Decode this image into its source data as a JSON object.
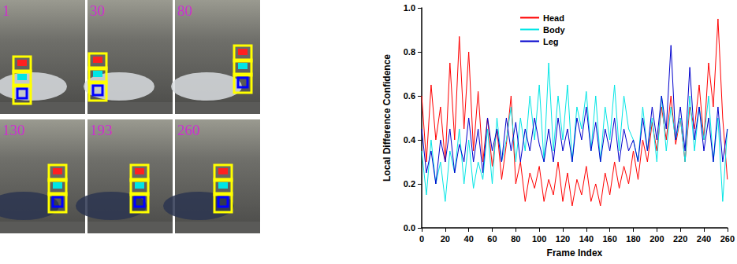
{
  "frames": {
    "labels": [
      "1",
      "30",
      "80",
      "130",
      "193",
      "260"
    ]
  },
  "chart_data": {
    "type": "line",
    "x_label": "Frame Index",
    "y_label": "Local Difference Confidence",
    "x": [
      0,
      4,
      8,
      12,
      16,
      20,
      24,
      28,
      32,
      36,
      40,
      44,
      48,
      52,
      56,
      60,
      64,
      68,
      72,
      76,
      80,
      84,
      88,
      92,
      96,
      100,
      104,
      108,
      112,
      116,
      120,
      124,
      128,
      132,
      136,
      140,
      144,
      148,
      152,
      156,
      160,
      164,
      168,
      172,
      176,
      180,
      184,
      188,
      192,
      196,
      200,
      204,
      208,
      212,
      216,
      220,
      224,
      228,
      232,
      236,
      240,
      244,
      248,
      252,
      256,
      260
    ],
    "series": [
      {
        "name": "Head",
        "color": "#ff0000",
        "values": [
          0.6,
          0.3,
          0.65,
          0.4,
          0.55,
          0.3,
          0.75,
          0.4,
          0.87,
          0.45,
          0.8,
          0.35,
          0.62,
          0.3,
          0.5,
          0.28,
          0.45,
          0.22,
          0.38,
          0.6,
          0.2,
          0.3,
          0.12,
          0.25,
          0.18,
          0.28,
          0.12,
          0.22,
          0.15,
          0.3,
          0.12,
          0.25,
          0.1,
          0.22,
          0.15,
          0.28,
          0.12,
          0.2,
          0.1,
          0.25,
          0.15,
          0.3,
          0.18,
          0.28,
          0.2,
          0.35,
          0.22,
          0.4,
          0.3,
          0.48,
          0.35,
          0.55,
          0.4,
          0.6,
          0.38,
          0.5,
          0.3,
          0.55,
          0.45,
          0.65,
          0.4,
          0.75,
          0.55,
          0.95,
          0.5,
          0.22
        ]
      },
      {
        "name": "Body",
        "color": "#00e5e5",
        "values": [
          0.35,
          0.15,
          0.4,
          0.2,
          0.3,
          0.12,
          0.35,
          0.25,
          0.45,
          0.2,
          0.4,
          0.18,
          0.3,
          0.22,
          0.45,
          0.2,
          0.5,
          0.3,
          0.4,
          0.55,
          0.3,
          0.5,
          0.35,
          0.6,
          0.4,
          0.65,
          0.3,
          0.75,
          0.35,
          0.6,
          0.4,
          0.65,
          0.3,
          0.55,
          0.45,
          0.62,
          0.35,
          0.6,
          0.3,
          0.55,
          0.4,
          0.65,
          0.35,
          0.6,
          0.45,
          0.4,
          0.3,
          0.55,
          0.35,
          0.5,
          0.3,
          0.6,
          0.35,
          0.55,
          0.4,
          0.5,
          0.3,
          0.6,
          0.35,
          0.55,
          0.4,
          0.6,
          0.3,
          0.5,
          0.12,
          0.45
        ]
      },
      {
        "name": "Leg",
        "color": "#0000cc",
        "values": [
          0.45,
          0.25,
          0.35,
          0.2,
          0.4,
          0.3,
          0.45,
          0.25,
          0.38,
          0.3,
          0.5,
          0.3,
          0.45,
          0.25,
          0.5,
          0.35,
          0.45,
          0.3,
          0.5,
          0.35,
          0.48,
          0.3,
          0.45,
          0.35,
          0.5,
          0.38,
          0.3,
          0.45,
          0.3,
          0.5,
          0.35,
          0.45,
          0.3,
          0.5,
          0.4,
          0.55,
          0.35,
          0.48,
          0.3,
          0.45,
          0.35,
          0.5,
          0.3,
          0.45,
          0.35,
          0.4,
          0.3,
          0.5,
          0.35,
          0.55,
          0.4,
          0.6,
          0.45,
          0.83,
          0.4,
          0.55,
          0.35,
          0.73,
          0.4,
          0.55,
          0.35,
          0.5,
          0.3,
          0.55,
          0.3,
          0.45
        ]
      }
    ],
    "xlim": [
      0,
      260
    ],
    "xticks": [
      0,
      20,
      40,
      60,
      80,
      100,
      120,
      140,
      160,
      180,
      200,
      220,
      240,
      260
    ],
    "ylim": [
      0,
      1
    ],
    "yticks": [
      {
        "value": 0,
        "label": "0.0"
      },
      0.2,
      0.4,
      0.6,
      0.8,
      {
        "value": 1,
        "label": "1.0"
      }
    ],
    "legend": "top",
    "grid": false
  }
}
